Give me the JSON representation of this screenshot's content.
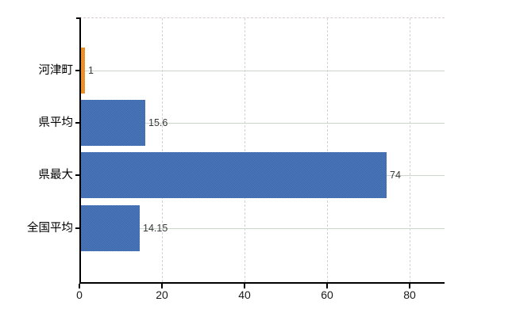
{
  "chart_data": {
    "type": "bar",
    "orientation": "horizontal",
    "title": "",
    "xlabel": "",
    "ylabel": "",
    "categories": [
      "河津町",
      "県平均",
      "県最大",
      "全国平均"
    ],
    "values": [
      1,
      15.6,
      74,
      14.15
    ],
    "value_labels": [
      "1",
      "15.6",
      "74",
      "14.15"
    ],
    "bar_color_names": [
      "orange",
      "blue",
      "blue",
      "blue"
    ],
    "xlim": [
      0,
      88.5
    ],
    "xticks": [
      0,
      20,
      40,
      60,
      80
    ],
    "xtick_labels": [
      "0",
      "20",
      "40",
      "60",
      "80"
    ],
    "grid": true,
    "legend_position": "none"
  },
  "colors": {
    "bar_blue_light": "#4f7cc0",
    "bar_blue_dark": "#3a66a6",
    "bar_orange_light": "#f59d36",
    "bar_orange_dark": "#e2801c",
    "axis": "#000000",
    "vertical_gridline": "#d7ced7",
    "horizontal_gridline": "#ccd6cc",
    "top_border": "#d8cccc",
    "category_text": "#000000",
    "value_text": "#3a3a3a",
    "tick_text": "#1a1a1a",
    "background": "#ffffff"
  }
}
